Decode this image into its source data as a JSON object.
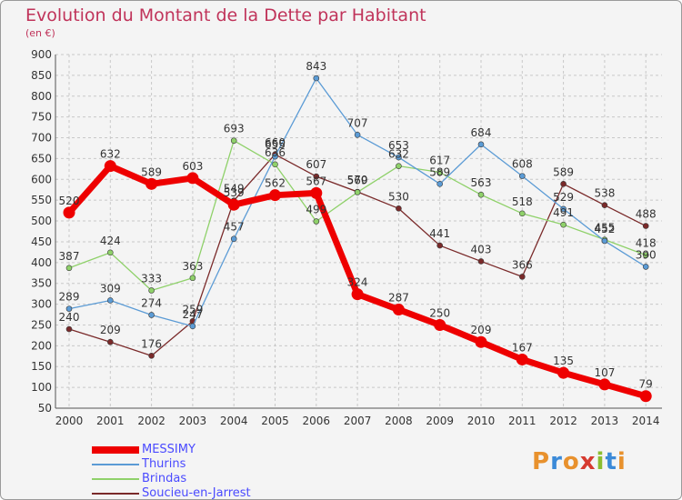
{
  "title": "Evolution du Montant de la Dette par Habitant",
  "unit": "(en €)",
  "logo": {
    "text": "Proxiti",
    "colors": [
      "#e8912d",
      "#3b8ad8",
      "#e8912d",
      "#d63a2f",
      "#8bbd2f",
      "#3b8ad8",
      "#e8912d"
    ]
  },
  "chart_data": {
    "type": "line",
    "title": "Evolution du Montant de la Dette par Habitant",
    "ylabel": "(en €)",
    "xlabel": "",
    "x": [
      "2000",
      "2001",
      "2002",
      "2003",
      "2004",
      "2005",
      "2006",
      "2007",
      "2008",
      "2009",
      "2010",
      "2011",
      "2012",
      "2013",
      "2014"
    ],
    "yticks": [
      "50",
      "100",
      "150",
      "200",
      "250",
      "300",
      "350",
      "400",
      "450",
      "500",
      "550",
      "600",
      "650",
      "700",
      "750",
      "800",
      "850",
      "900"
    ],
    "ylim": [
      50,
      900
    ],
    "grid": true,
    "legend": "bottom-left",
    "series": [
      {
        "name": "MESSIMY",
        "color": "#ee0000",
        "values": [
          520,
          632,
          589,
          603,
          539,
          562,
          567,
          324,
          287,
          250,
          209,
          167,
          135,
          107,
          79
        ],
        "labels": [
          "520",
          "632",
          "589",
          "603",
          "539",
          "562",
          "567",
          "324",
          "287",
          "250",
          "209",
          "167",
          "135",
          "107",
          "79"
        ]
      },
      {
        "name": "Thurins",
        "color": "#5b9bd5",
        "values": [
          289,
          309,
          274,
          247,
          457,
          655,
          843,
          707,
          653,
          589,
          684,
          608,
          529,
          452,
          390
        ],
        "labels": [
          "289",
          "309",
          "274",
          "247",
          "457",
          "655",
          "843",
          "707",
          "653",
          "589",
          "684",
          "608",
          "529",
          "452",
          "390"
        ]
      },
      {
        "name": "Brindas",
        "color": "#8fd16a",
        "values": [
          387,
          424,
          333,
          363,
          693,
          636,
          499,
          569,
          632,
          617,
          563,
          518,
          491,
          455,
          418
        ],
        "labels": [
          "387",
          "424",
          "333",
          "363",
          "693",
          "636",
          "499",
          "569",
          "632",
          "617",
          "563",
          "518",
          "491",
          "455",
          "418"
        ]
      },
      {
        "name": "Soucieu-en-Jarrest",
        "color": "#7a2a2a",
        "values": [
          240,
          209,
          176,
          259,
          549,
          660,
          607,
          570,
          530,
          441,
          403,
          366,
          589,
          538,
          488
        ],
        "labels": [
          "240",
          "209",
          "176",
          "259",
          "549",
          "660",
          "607",
          "570",
          "530",
          "441",
          "403",
          "366",
          "589",
          "538",
          "488"
        ]
      }
    ]
  }
}
